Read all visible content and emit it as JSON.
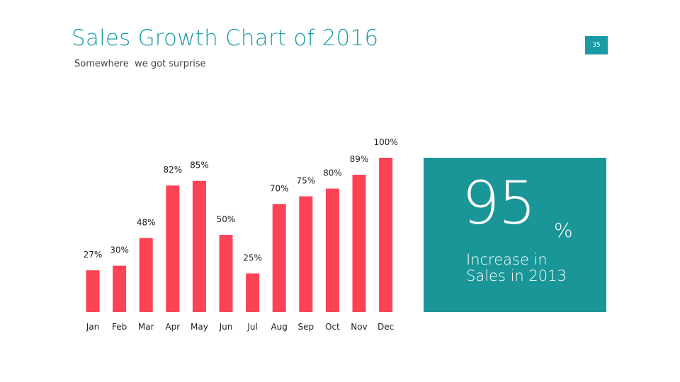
{
  "slide": {
    "title": "Sales Growth Chart of 2016",
    "subtitle": "Somewhere  we got surprise",
    "page_number": "35"
  },
  "stat": {
    "value": "95",
    "unit": "%",
    "caption_line1": "Increase in",
    "caption_line2": "Sales in 2013"
  },
  "colors": {
    "accent": "#1a9ba3",
    "bar": "#fc4356",
    "box": "#1a9698"
  },
  "chart_data": {
    "type": "bar",
    "categories": [
      "Jan",
      "Feb",
      "Mar",
      "Apr",
      "May",
      "Jun",
      "Jul",
      "Aug",
      "Sep",
      "Oct",
      "Nov",
      "Dec"
    ],
    "values": [
      27,
      30,
      48,
      82,
      85,
      50,
      25,
      70,
      75,
      80,
      89,
      100
    ],
    "data_labels": [
      "27%",
      "30%",
      "48%",
      "82%",
      "85%",
      "50%",
      "25%",
      "70%",
      "75%",
      "80%",
      "89%",
      "100%"
    ],
    "ylim": [
      0,
      100
    ],
    "grid": false,
    "legend": "none"
  }
}
